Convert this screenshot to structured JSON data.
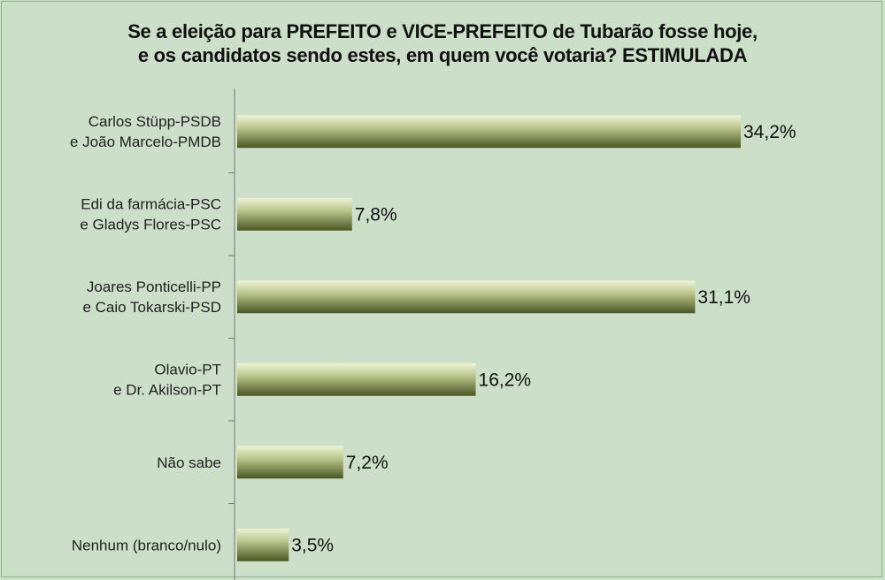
{
  "chart_data": {
    "type": "bar",
    "orientation": "horizontal",
    "title_line1": "Se a eleição para PREFEITO e VICE-PREFEITO de Tubarão fosse hoje,",
    "title_line2": "e os candidatos sendo estes, em quem você votaria? ESTIMULADA",
    "categories": [
      [
        "Carlos Stüpp-PSDB",
        "e João Marcelo-PMDB"
      ],
      [
        "Edi da farmácia-PSC",
        "e Gladys Flores-PSC"
      ],
      [
        "Joares Ponticelli-PP",
        "e Caio Tokarski-PSD"
      ],
      [
        "Olavio-PT",
        "e Dr. Akilson-PT"
      ],
      [
        "Não sabe"
      ],
      [
        "Nenhum (branco/nulo)"
      ]
    ],
    "values": [
      34.2,
      7.8,
      31.1,
      16.2,
      7.2,
      3.5
    ],
    "value_labels": [
      "34,2%",
      "7,8%",
      "31,1%",
      "16,2%",
      "7,2%",
      "3,5%"
    ],
    "xlim": [
      0,
      34.2
    ],
    "grid": false,
    "colors": {
      "bar_light": "#e9f0cf",
      "bar_mid": "#9aa86a",
      "bar_dark": "#4d5a25",
      "background": "#ccdfc9"
    }
  }
}
